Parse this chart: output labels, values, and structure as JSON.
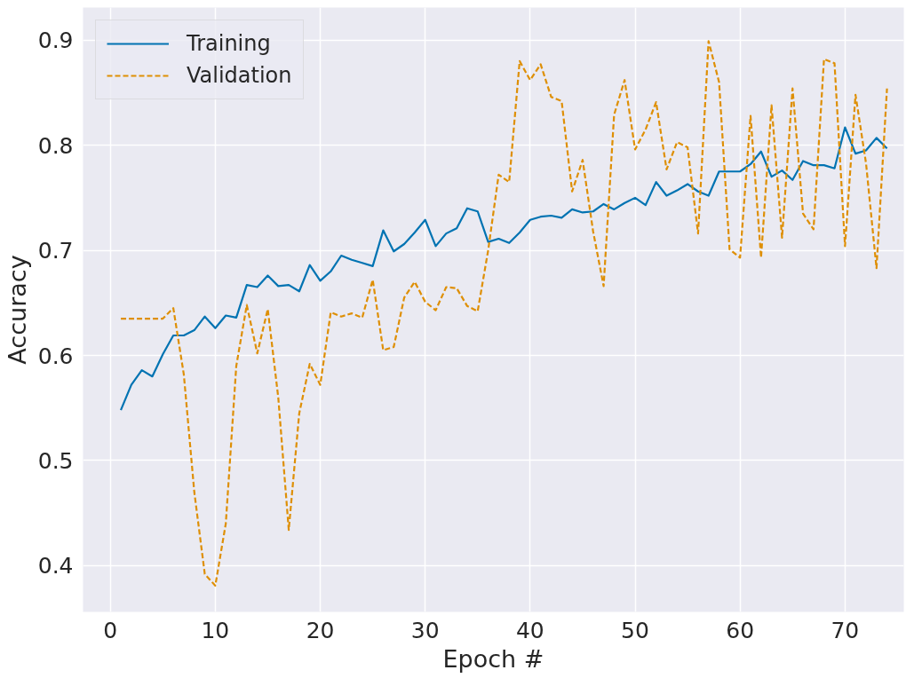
{
  "chart_data": {
    "type": "line",
    "xlabel": "Epoch #",
    "ylabel": "Accuracy",
    "x": [
      1,
      2,
      3,
      4,
      5,
      6,
      7,
      8,
      9,
      10,
      11,
      12,
      13,
      14,
      15,
      16,
      17,
      18,
      19,
      20,
      21,
      22,
      23,
      24,
      25,
      26,
      27,
      28,
      29,
      30,
      31,
      32,
      33,
      34,
      35,
      36,
      37,
      38,
      39,
      40,
      41,
      42,
      43,
      44,
      45,
      46,
      47,
      48,
      49,
      50,
      51,
      52,
      53,
      54,
      55,
      56,
      57,
      58,
      59,
      60,
      61,
      62,
      63,
      64,
      65,
      66,
      67,
      68,
      69,
      70,
      71,
      72,
      73,
      74
    ],
    "series": [
      {
        "name": "Training",
        "color": "#0173b2",
        "line_style": "solid",
        "values": [
          0.548,
          0.572,
          0.586,
          0.58,
          0.601,
          0.619,
          0.619,
          0.624,
          0.637,
          0.626,
          0.638,
          0.636,
          0.667,
          0.665,
          0.676,
          0.666,
          0.667,
          0.661,
          0.686,
          0.671,
          0.68,
          0.695,
          0.691,
          0.688,
          0.685,
          0.719,
          0.699,
          0.706,
          0.717,
          0.729,
          0.704,
          0.716,
          0.721,
          0.74,
          0.737,
          0.708,
          0.711,
          0.707,
          0.717,
          0.729,
          0.732,
          0.733,
          0.731,
          0.739,
          0.736,
          0.737,
          0.744,
          0.739,
          0.745,
          0.75,
          0.743,
          0.765,
          0.752,
          0.757,
          0.763,
          0.756,
          0.752,
          0.775,
          0.775,
          0.775,
          0.782,
          0.794,
          0.77,
          0.776,
          0.767,
          0.785,
          0.781,
          0.781,
          0.778,
          0.817,
          0.792,
          0.795,
          0.807,
          0.797
        ]
      },
      {
        "name": "Validation",
        "color": "#de8f05",
        "line_style": "dashed",
        "values": [
          0.635,
          0.635,
          0.635,
          0.635,
          0.635,
          0.645,
          0.582,
          0.47,
          0.392,
          0.381,
          0.44,
          0.59,
          0.648,
          0.602,
          0.644,
          0.56,
          0.434,
          0.545,
          0.592,
          0.572,
          0.641,
          0.637,
          0.64,
          0.636,
          0.672,
          0.605,
          0.608,
          0.655,
          0.67,
          0.651,
          0.643,
          0.665,
          0.664,
          0.647,
          0.642,
          0.7,
          0.772,
          0.765,
          0.88,
          0.862,
          0.877,
          0.846,
          0.842,
          0.756,
          0.786,
          0.718,
          0.666,
          0.829,
          0.862,
          0.796,
          0.815,
          0.841,
          0.777,
          0.803,
          0.798,
          0.716,
          0.899,
          0.86,
          0.701,
          0.693,
          0.828,
          0.693,
          0.838,
          0.712,
          0.854,
          0.735,
          0.72,
          0.882,
          0.878,
          0.704,
          0.848,
          0.783,
          0.683,
          0.854
        ]
      }
    ],
    "xlim": [
      -2.6,
      75.6
    ],
    "ylim": [
      0.356,
      0.931
    ],
    "xticks": [
      0,
      10,
      20,
      30,
      40,
      50,
      60,
      70
    ],
    "yticks": [
      0.4,
      0.5,
      0.6,
      0.7,
      0.8,
      0.9
    ],
    "grid": true,
    "legend": "top left",
    "marker": "none"
  }
}
